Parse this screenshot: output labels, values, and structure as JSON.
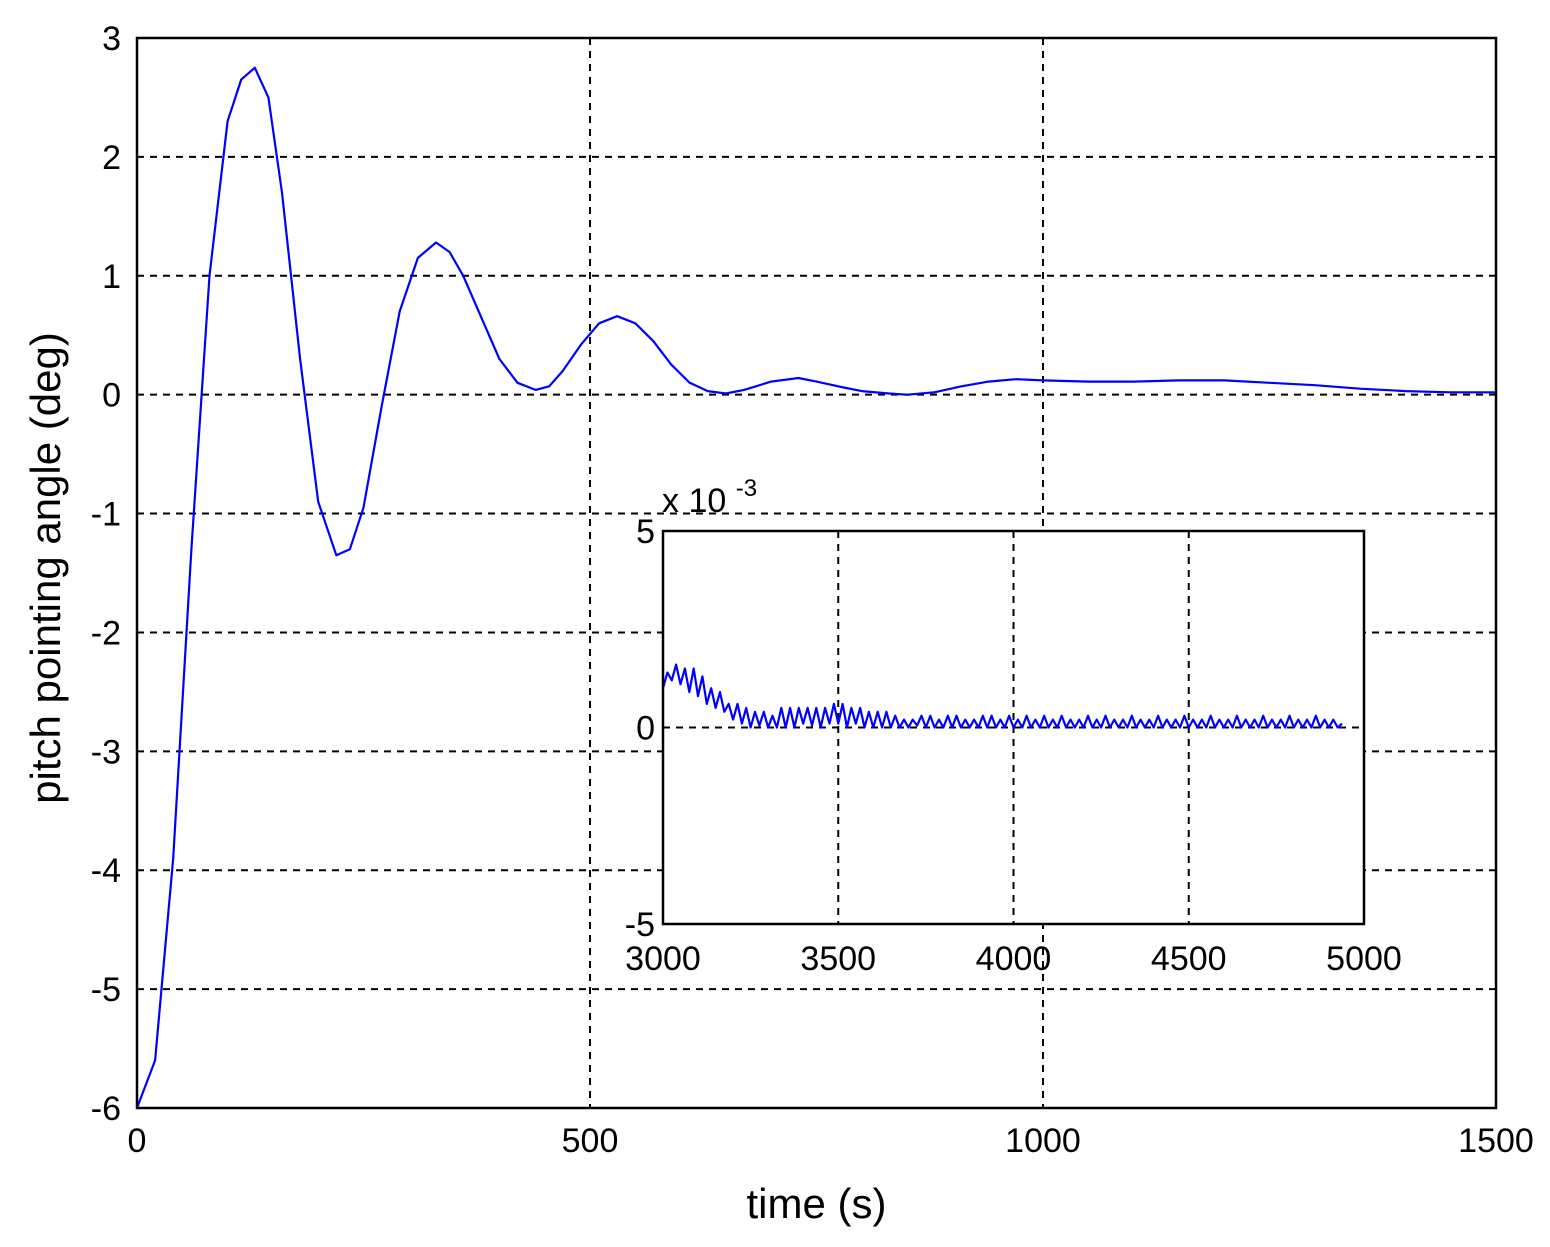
{
  "chart_data": [
    {
      "type": "line",
      "xlabel": "time (s)",
      "ylabel": "pitch pointing angle (deg)",
      "xlim": [
        0,
        1500
      ],
      "ylim": [
        -6,
        3
      ],
      "xticks": [
        "0",
        "500",
        "1000",
        "1500"
      ],
      "yticks": [
        "-6",
        "-5",
        "-4",
        "-3",
        "-2",
        "-1",
        "0",
        "1",
        "2",
        "3"
      ],
      "grid": true,
      "color": "#0000ff",
      "series": [
        {
          "x": [
            0,
            20,
            40,
            60,
            80,
            100,
            115,
            130,
            145,
            160,
            180,
            200,
            220,
            235,
            250,
            270,
            290,
            310,
            330,
            345,
            360,
            380,
            400,
            420,
            440,
            455,
            470,
            490,
            510,
            530,
            550,
            570,
            590,
            610,
            630,
            650,
            670,
            700,
            730,
            750,
            780,
            800,
            830,
            850,
            880,
            910,
            940,
            970,
            1000,
            1050,
            1100,
            1150,
            1200,
            1250,
            1300,
            1350,
            1400,
            1450,
            1500
          ],
          "y": [
            -6.0,
            -5.6,
            -3.9,
            -1.3,
            1.0,
            2.3,
            2.65,
            2.75,
            2.5,
            1.7,
            0.3,
            -0.9,
            -1.35,
            -1.3,
            -0.95,
            -0.1,
            0.7,
            1.15,
            1.28,
            1.2,
            1.0,
            0.65,
            0.3,
            0.1,
            0.04,
            0.07,
            0.2,
            0.42,
            0.6,
            0.66,
            0.6,
            0.45,
            0.25,
            0.1,
            0.03,
            0.01,
            0.04,
            0.11,
            0.14,
            0.11,
            0.06,
            0.03,
            0.01,
            0.0,
            0.02,
            0.07,
            0.11,
            0.13,
            0.12,
            0.11,
            0.11,
            0.12,
            0.12,
            0.1,
            0.08,
            0.05,
            0.03,
            0.02,
            0.02
          ]
        }
      ]
    },
    {
      "type": "line",
      "xlim": [
        3000,
        5000
      ],
      "ylim": [
        -5,
        5
      ],
      "xticks": [
        "3000",
        "3500",
        "4000",
        "4500",
        "5000"
      ],
      "yticks": [
        "-5",
        "0",
        "5"
      ],
      "exponent_base": "x 10",
      "exponent_power": "-3",
      "grid": true,
      "color": "#0000ff",
      "series": [
        {
          "x_start": 3000,
          "x_step": 12.5,
          "y": [
            1.0,
            1.4,
            1.2,
            1.6,
            1.1,
            1.5,
            0.9,
            1.5,
            0.8,
            1.3,
            0.6,
            1.0,
            0.5,
            0.9,
            0.4,
            0.6,
            0.2,
            0.6,
            0.1,
            0.5,
            0.0,
            0.4,
            0.05,
            0.4,
            0.0,
            0.3,
            0.0,
            0.5,
            0.0,
            0.5,
            0.0,
            0.5,
            0.1,
            0.5,
            0.05,
            0.5,
            0.0,
            0.5,
            0.1,
            0.6,
            0.1,
            0.6,
            0.0,
            0.5,
            0.1,
            0.5,
            0.0,
            0.4,
            0.0,
            0.4,
            0.0,
            0.4,
            0.0,
            0.3,
            0.0,
            0.2,
            0.0,
            0.2,
            0.05,
            0.3,
            0.0,
            0.3,
            0.0,
            0.2,
            0.0,
            0.3,
            0.0,
            0.3,
            0.0,
            0.2,
            0.0,
            0.2,
            0.0,
            0.3,
            0.0,
            0.3,
            0.0,
            0.2,
            0.0,
            0.3,
            0.0,
            0.2,
            0.0,
            0.3,
            0.0,
            0.2,
            0.0,
            0.3,
            0.0,
            0.2,
            0.0,
            0.3,
            0.0,
            0.2,
            0.0,
            0.2,
            0.0,
            0.3,
            0.0,
            0.2,
            0.0,
            0.3,
            0.0,
            0.2,
            0.0,
            0.2,
            0.0,
            0.3,
            0.0,
            0.2,
            0.0,
            0.2,
            0.0,
            0.3,
            0.0,
            0.2,
            0.0,
            0.2,
            0.0,
            0.3,
            0.0,
            0.2,
            0.0,
            0.2,
            0.0,
            0.3,
            0.0,
            0.2,
            0.0,
            0.2,
            0.0,
            0.3,
            0.0,
            0.2,
            0.0,
            0.2,
            0.0,
            0.3,
            0.0,
            0.2,
            0.0,
            0.2,
            0.0,
            0.3,
            0.0,
            0.2,
            0.0,
            0.2,
            0.0,
            0.3,
            0.0,
            0.2,
            0.0,
            0.2,
            0.0,
            0.1
          ]
        }
      ]
    }
  ]
}
